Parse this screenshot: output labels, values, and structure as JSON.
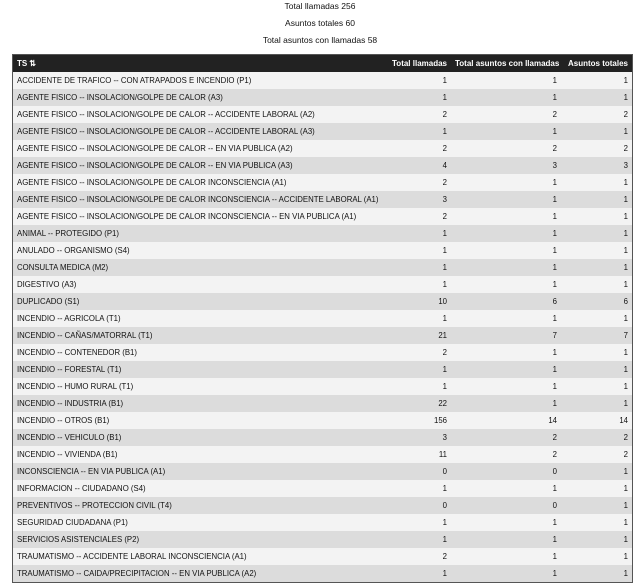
{
  "summary": {
    "total_llamadas": "Total llamadas 256",
    "asuntos_totales": "Asuntos totales 60",
    "total_asuntos_con_llamadas": "Total asuntos con llamadas 58"
  },
  "table": {
    "headers": [
      "TS",
      "Total llamadas",
      "Total asuntos con llamadas",
      "Asuntos totales"
    ],
    "sort_icon": "sort-icon",
    "rows": [
      [
        "ACCIDENTE DE TRAFICO -- CON ATRAPADOS E INCENDIO (P1)",
        "1",
        "1",
        "1"
      ],
      [
        "AGENTE FISICO -- INSOLACION/GOLPE DE CALOR (A3)",
        "1",
        "1",
        "1"
      ],
      [
        "AGENTE FISICO -- INSOLACION/GOLPE DE CALOR -- ACCIDENTE LABORAL (A2)",
        "2",
        "2",
        "2"
      ],
      [
        "AGENTE FISICO -- INSOLACION/GOLPE DE CALOR -- ACCIDENTE LABORAL (A3)",
        "1",
        "1",
        "1"
      ],
      [
        "AGENTE FISICO -- INSOLACION/GOLPE DE CALOR -- EN VIA PUBLICA (A2)",
        "2",
        "2",
        "2"
      ],
      [
        "AGENTE FISICO -- INSOLACION/GOLPE DE CALOR -- EN VIA PUBLICA (A3)",
        "4",
        "3",
        "3"
      ],
      [
        "AGENTE FISICO -- INSOLACION/GOLPE DE CALOR INCONSCIENCIA (A1)",
        "2",
        "1",
        "1"
      ],
      [
        "AGENTE FISICO -- INSOLACION/GOLPE DE CALOR INCONSCIENCIA -- ACCIDENTE LABORAL (A1)",
        "3",
        "1",
        "1"
      ],
      [
        "AGENTE FISICO -- INSOLACION/GOLPE DE CALOR INCONSCIENCIA -- EN VIA PUBLICA (A1)",
        "2",
        "1",
        "1"
      ],
      [
        "ANIMAL -- PROTEGIDO (P1)",
        "1",
        "1",
        "1"
      ],
      [
        "ANULADO -- ORGANISMO (S4)",
        "1",
        "1",
        "1"
      ],
      [
        "CONSULTA MEDICA (M2)",
        "1",
        "1",
        "1"
      ],
      [
        "DIGESTIVO (A3)",
        "1",
        "1",
        "1"
      ],
      [
        "DUPLICADO (S1)",
        "10",
        "6",
        "6"
      ],
      [
        "INCENDIO -- AGRICOLA (T1)",
        "1",
        "1",
        "1"
      ],
      [
        "INCENDIO -- CAÑAS/MATORRAL (T1)",
        "21",
        "7",
        "7"
      ],
      [
        "INCENDIO -- CONTENEDOR (B1)",
        "2",
        "1",
        "1"
      ],
      [
        "INCENDIO -- FORESTAL (T1)",
        "1",
        "1",
        "1"
      ],
      [
        "INCENDIO -- HUMO RURAL (T1)",
        "1",
        "1",
        "1"
      ],
      [
        "INCENDIO -- INDUSTRIA (B1)",
        "22",
        "1",
        "1"
      ],
      [
        "INCENDIO -- OTROS (B1)",
        "156",
        "14",
        "14"
      ],
      [
        "INCENDIO -- VEHICULO (B1)",
        "3",
        "2",
        "2"
      ],
      [
        "INCENDIO -- VIVIENDA (B1)",
        "11",
        "2",
        "2"
      ],
      [
        "INCONSCIENCIA -- EN VIA PUBLICA (A1)",
        "0",
        "0",
        "1"
      ],
      [
        "INFORMACION -- CIUDADANO (S4)",
        "1",
        "1",
        "1"
      ],
      [
        "PREVENTIVOS -- PROTECCION CIVIL (T4)",
        "0",
        "0",
        "1"
      ],
      [
        "SEGURIDAD CIUDADANA (P1)",
        "1",
        "1",
        "1"
      ],
      [
        "SERVICIOS ASISTENCIALES (P2)",
        "1",
        "1",
        "1"
      ],
      [
        "TRAUMATISMO -- ACCIDENTE LABORAL INCONSCIENCIA (A1)",
        "2",
        "1",
        "1"
      ],
      [
        "TRAUMATISMO -- CAIDA/PRECIPITACION -- EN VIA PUBLICA (A2)",
        "1",
        "1",
        "1"
      ]
    ]
  }
}
